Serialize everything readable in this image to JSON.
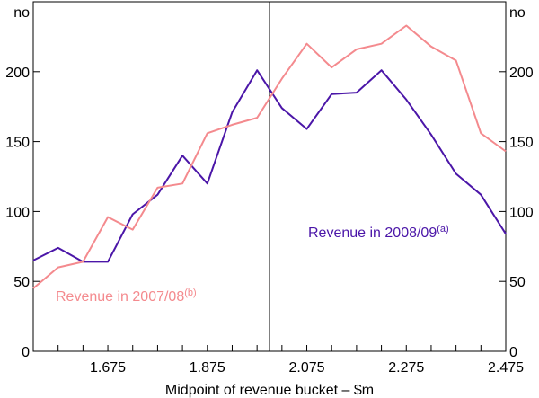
{
  "chart_data": {
    "type": "line",
    "title": "",
    "xlabel": "Midpoint of revenue bucket – $m",
    "ylabel_left": "no",
    "ylabel_right": "no",
    "xlim": [
      1.525,
      2.475
    ],
    "ylim": [
      0,
      250
    ],
    "x_ticks": [
      1.675,
      1.875,
      2.075,
      2.275,
      2.475
    ],
    "x_tick_labels": [
      "1.675",
      "1.875",
      "2.075",
      "2.275",
      "2.475"
    ],
    "x_minor_ticks": [
      1.575,
      1.625,
      1.725,
      1.775,
      1.825,
      1.925,
      1.975,
      2.025,
      2.125,
      2.175,
      2.225,
      2.325,
      2.375,
      2.425
    ],
    "y_ticks": [
      0,
      50,
      100,
      150,
      200
    ],
    "y_tick_labels": [
      "0",
      "50",
      "100",
      "150",
      "200"
    ],
    "divider_x": 2.0,
    "grid": false,
    "series": [
      {
        "name": "Revenue in 2008/09",
        "label_text": "Revenue in 2008/09",
        "label_sup": "(a)",
        "color": "#4b16a8",
        "x": [
          1.525,
          1.575,
          1.625,
          1.675,
          1.725,
          1.775,
          1.825,
          1.875,
          1.925,
          1.975,
          2.025,
          2.075,
          2.125,
          2.175,
          2.225,
          2.275,
          2.325,
          2.375,
          2.425,
          2.475
        ],
        "values": [
          65,
          74,
          64,
          64,
          98,
          112,
          140,
          120,
          171,
          201,
          174,
          159,
          184,
          185,
          201,
          180,
          155,
          127,
          112,
          84
        ]
      },
      {
        "name": "Revenue in 2007/08",
        "label_text": "Revenue in 2007/08",
        "label_sup": "(b)",
        "color": "#f48a8e",
        "x": [
          1.525,
          1.575,
          1.625,
          1.675,
          1.725,
          1.775,
          1.825,
          1.875,
          1.925,
          1.975,
          2.025,
          2.075,
          2.125,
          2.175,
          2.225,
          2.275,
          2.325,
          2.375,
          2.425,
          2.475
        ],
        "values": [
          45,
          60,
          64,
          96,
          87,
          117,
          120,
          156,
          162,
          167,
          195,
          220,
          203,
          216,
          220,
          233,
          218,
          208,
          156,
          143
        ]
      }
    ]
  }
}
